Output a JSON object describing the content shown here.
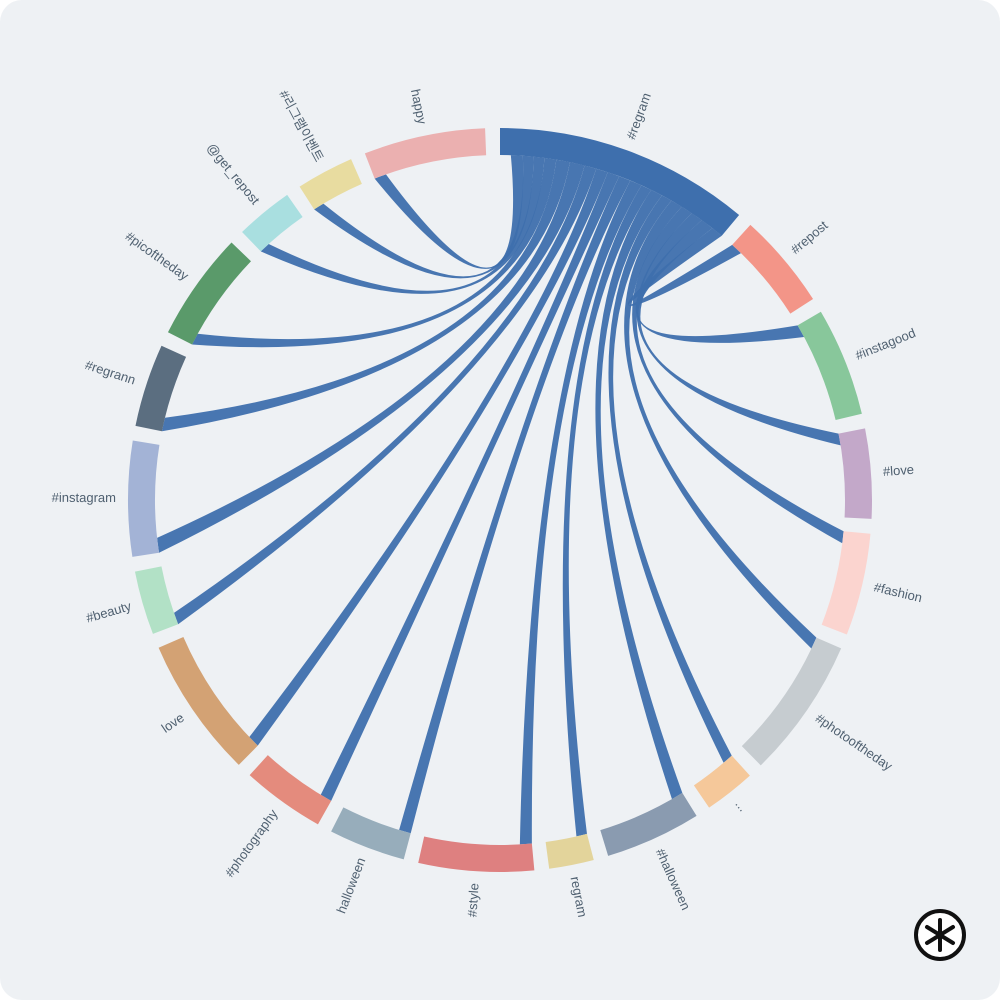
{
  "chart_data": {
    "type": "chord",
    "nodes": [
      {
        "name": "#regram",
        "color": "#3e6fad",
        "value": 40
      },
      {
        "name": "#repost",
        "color": "#f39588",
        "value": 15
      },
      {
        "name": "#instagood",
        "color": "#88c79b",
        "value": 17
      },
      {
        "name": "#love",
        "color": "#c3a8c9",
        "value": 14
      },
      {
        "name": "#fashion",
        "color": "#fbd4cf",
        "value": 16
      },
      {
        "name": "#photooftheday",
        "color": "#c6ccd0",
        "value": 22
      },
      {
        "name": "...",
        "color": "#f5c89a",
        "value": 8
      },
      {
        "name": "#halloween",
        "color": "#8a9bb0",
        "value": 15
      },
      {
        "name": "regram",
        "color": "#e3d49b",
        "value": 7
      },
      {
        "name": "#style",
        "color": "#de8080",
        "value": 18
      },
      {
        "name": "halloween",
        "color": "#97adbb",
        "value": 12
      },
      {
        "name": "#photography",
        "color": "#e48b7d",
        "value": 13
      },
      {
        "name": "love",
        "color": "#d3a274",
        "value": 22
      },
      {
        "name": "#beauty",
        "color": "#b2e1c6",
        "value": 10
      },
      {
        "name": "#instagram",
        "color": "#a3b3d6",
        "value": 18
      },
      {
        "name": "#regrann",
        "color": "#5b6e80",
        "value": 13
      },
      {
        "name": "#picoftheday",
        "color": "#5a9a6a",
        "value": 17
      },
      {
        "name": "@get_repost",
        "color": "#a9dfe0",
        "value": 9
      },
      {
        "name": "#리그램이벤트",
        "color": "#e8dca0",
        "value": 9
      },
      {
        "name": "happy",
        "color": "#ebb0b0",
        "value": 19
      }
    ],
    "links": [
      {
        "source": 0,
        "target": 1,
        "value": 2
      },
      {
        "source": 0,
        "target": 2,
        "value": 2.2
      },
      {
        "source": 0,
        "target": 3,
        "value": 2
      },
      {
        "source": 0,
        "target": 4,
        "value": 2
      },
      {
        "source": 0,
        "target": 5,
        "value": 2
      },
      {
        "source": 0,
        "target": 6,
        "value": 1.8
      },
      {
        "source": 0,
        "target": 7,
        "value": 2
      },
      {
        "source": 0,
        "target": 8,
        "value": 1.8
      },
      {
        "source": 0,
        "target": 9,
        "value": 2
      },
      {
        "source": 0,
        "target": 10,
        "value": 2
      },
      {
        "source": 0,
        "target": 11,
        "value": 2
      },
      {
        "source": 0,
        "target": 12,
        "value": 2
      },
      {
        "source": 0,
        "target": 13,
        "value": 2
      },
      {
        "source": 0,
        "target": 14,
        "value": 2.5
      },
      {
        "source": 0,
        "target": 15,
        "value": 2.3
      },
      {
        "source": 0,
        "target": 16,
        "value": 2
      },
      {
        "source": 0,
        "target": 17,
        "value": 1.8
      },
      {
        "source": 0,
        "target": 18,
        "value": 1.8
      },
      {
        "source": 0,
        "target": 19,
        "value": 2
      }
    ]
  }
}
